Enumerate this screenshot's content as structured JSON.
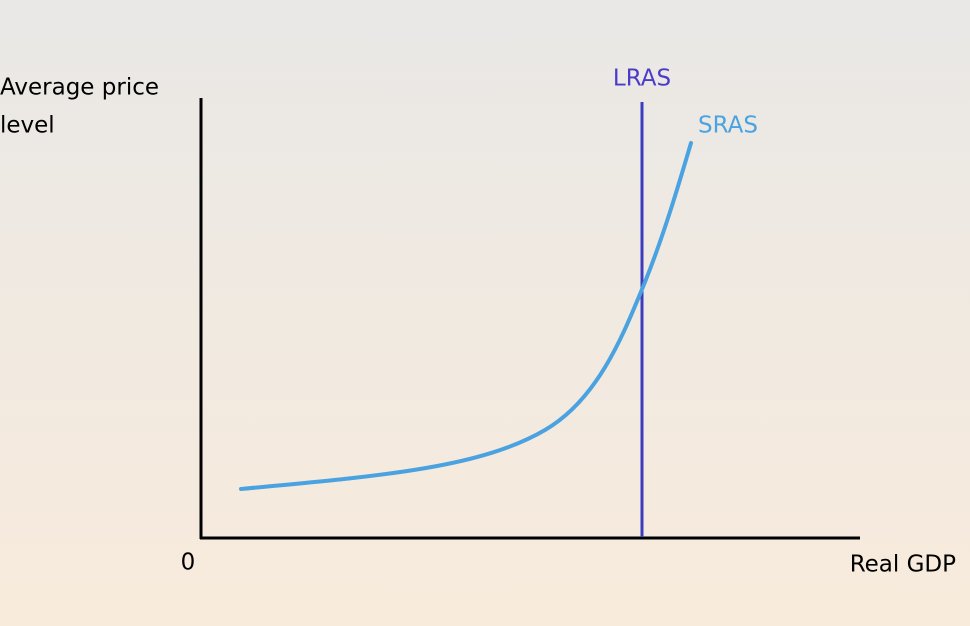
{
  "diagram": {
    "y_axis_label": [
      "Average price",
      "level"
    ],
    "x_axis_label": "Real GDP",
    "origin_label": "0",
    "curves": [
      {
        "label": "LRAS"
      },
      {
        "label": "SRAS"
      }
    ]
  }
}
